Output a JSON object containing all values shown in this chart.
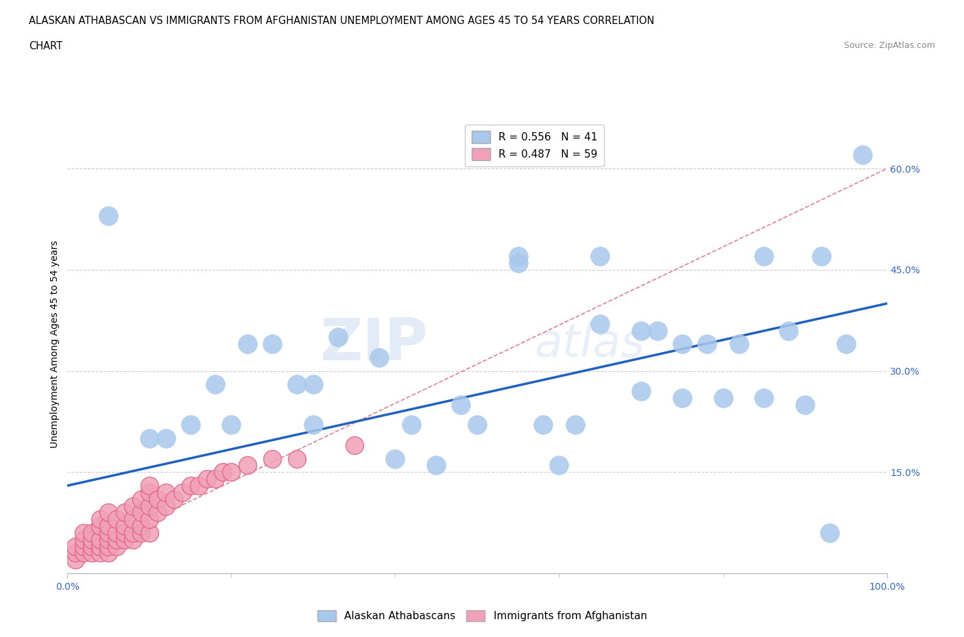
{
  "title_line1": "ALASKAN ATHABASCAN VS IMMIGRANTS FROM AFGHANISTAN UNEMPLOYMENT AMONG AGES 45 TO 54 YEARS CORRELATION",
  "title_line2": "CHART",
  "source_text": "Source: ZipAtlas.com",
  "ylabel": "Unemployment Among Ages 45 to 54 years",
  "xlim": [
    0.0,
    1.0
  ],
  "ylim": [
    0.0,
    0.68
  ],
  "xtick_labels": [
    "0.0%",
    "100.0%"
  ],
  "ytick_labels": [
    "15.0%",
    "30.0%",
    "45.0%",
    "60.0%"
  ],
  "ytick_values": [
    0.15,
    0.3,
    0.45,
    0.6
  ],
  "legend1_label": "R = 0.556   N = 41",
  "legend2_label": "R = 0.487   N = 59",
  "legend_bottom_label1": "Alaskan Athabascans",
  "legend_bottom_label2": "Immigrants from Afghanistan",
  "blue_color": "#a8c8ec",
  "pink_color": "#f0a0b8",
  "pink_dark_color": "#e06080",
  "blue_line_color": "#2060c0",
  "pink_line_color": "#e08090",
  "watermark_zip": "ZIP",
  "watermark_atlas": "atlas",
  "blue_scatter_x": [
    0.05,
    0.1,
    0.12,
    0.15,
    0.18,
    0.2,
    0.22,
    0.25,
    0.28,
    0.3,
    0.33,
    0.38,
    0.5,
    0.55,
    0.58,
    0.6,
    0.62,
    0.65,
    0.7,
    0.72,
    0.75,
    0.78,
    0.82,
    0.85,
    0.88,
    0.9,
    0.92,
    0.95,
    0.3,
    0.4,
    0.42,
    0.45,
    0.48,
    0.55,
    0.65,
    0.7,
    0.75,
    0.8,
    0.85,
    0.93,
    0.97
  ],
  "blue_scatter_y": [
    0.53,
    0.2,
    0.2,
    0.22,
    0.28,
    0.22,
    0.34,
    0.34,
    0.28,
    0.28,
    0.35,
    0.32,
    0.22,
    0.46,
    0.22,
    0.16,
    0.22,
    0.47,
    0.36,
    0.36,
    0.34,
    0.34,
    0.34,
    0.47,
    0.36,
    0.25,
    0.47,
    0.34,
    0.22,
    0.17,
    0.22,
    0.16,
    0.25,
    0.47,
    0.37,
    0.27,
    0.26,
    0.26,
    0.26,
    0.06,
    0.62
  ],
  "pink_scatter_x": [
    0.01,
    0.01,
    0.01,
    0.02,
    0.02,
    0.02,
    0.02,
    0.03,
    0.03,
    0.03,
    0.03,
    0.04,
    0.04,
    0.04,
    0.04,
    0.04,
    0.05,
    0.05,
    0.05,
    0.05,
    0.05,
    0.05,
    0.06,
    0.06,
    0.06,
    0.06,
    0.07,
    0.07,
    0.07,
    0.07,
    0.08,
    0.08,
    0.08,
    0.08,
    0.09,
    0.09,
    0.09,
    0.09,
    0.1,
    0.1,
    0.1,
    0.1,
    0.1,
    0.11,
    0.11,
    0.12,
    0.12,
    0.13,
    0.14,
    0.15,
    0.16,
    0.17,
    0.18,
    0.19,
    0.2,
    0.22,
    0.25,
    0.28,
    0.35
  ],
  "pink_scatter_y": [
    0.02,
    0.03,
    0.04,
    0.03,
    0.04,
    0.05,
    0.06,
    0.03,
    0.04,
    0.05,
    0.06,
    0.03,
    0.04,
    0.05,
    0.07,
    0.08,
    0.03,
    0.04,
    0.05,
    0.06,
    0.07,
    0.09,
    0.04,
    0.05,
    0.06,
    0.08,
    0.05,
    0.06,
    0.07,
    0.09,
    0.05,
    0.06,
    0.08,
    0.1,
    0.06,
    0.07,
    0.09,
    0.11,
    0.06,
    0.08,
    0.1,
    0.12,
    0.13,
    0.09,
    0.11,
    0.1,
    0.12,
    0.11,
    0.12,
    0.13,
    0.13,
    0.14,
    0.14,
    0.15,
    0.15,
    0.16,
    0.17,
    0.17,
    0.19
  ],
  "blue_line_x": [
    0.0,
    1.0
  ],
  "blue_line_y": [
    0.13,
    0.4
  ],
  "pink_line_x": [
    0.0,
    1.0
  ],
  "pink_line_y": [
    0.02,
    0.6
  ],
  "background_color": "#ffffff",
  "grid_color": "#cccccc"
}
